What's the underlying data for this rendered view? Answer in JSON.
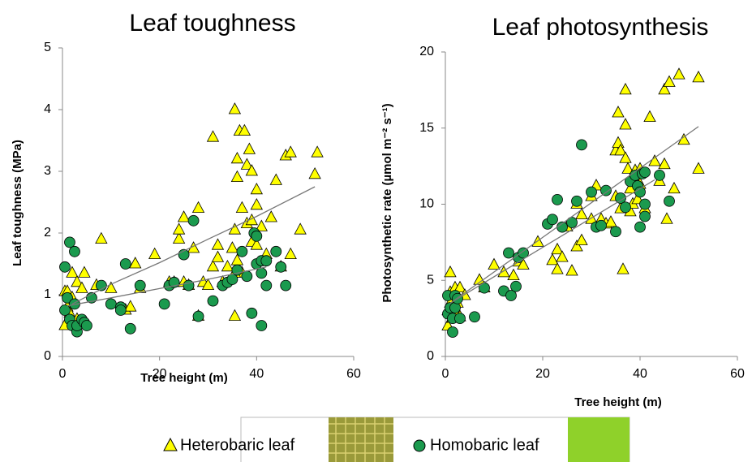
{
  "chart_data": [
    {
      "type": "scatter",
      "title": "Leaf toughness",
      "x_label": "Tree height (m)",
      "y_label": "Leaf toughness (MPa)",
      "xlim": [
        0,
        60
      ],
      "xticks": [
        0,
        20,
        40,
        60
      ],
      "ylim": [
        0,
        5
      ],
      "yticks": [
        0,
        1,
        2,
        3,
        4,
        5
      ],
      "series": [
        {
          "name": "Heterobaric leaf",
          "marker": "triangle",
          "color": "#ffff00",
          "x": [
            0.5,
            0.5,
            1,
            1,
            1.5,
            2,
            2,
            3,
            3,
            4,
            4.5,
            7,
            8,
            10,
            13,
            14,
            15,
            16,
            19,
            22,
            23,
            24,
            24,
            25,
            25,
            26,
            27,
            28,
            28,
            29,
            30,
            31,
            31,
            32,
            32,
            33,
            34,
            35,
            35.5,
            35.5,
            35.5,
            36,
            36,
            36,
            36.5,
            37,
            37,
            37.5,
            38,
            38,
            38.5,
            39,
            39,
            39,
            40,
            40,
            40,
            41,
            42,
            43,
            44,
            45,
            46,
            47,
            47,
            49,
            52,
            52.5,
            35.5,
            33
          ],
          "y": [
            0.5,
            1.05,
            0.8,
            1.05,
            0.7,
            1.35,
            0.95,
            1.2,
            0.6,
            1.1,
            1.35,
            1.15,
            1.9,
            1.1,
            0.75,
            0.8,
            1.5,
            1.1,
            1.65,
            1.2,
            1.2,
            1.9,
            2.05,
            2.25,
            1.2,
            1.15,
            1.75,
            2.4,
            0.65,
            1.2,
            1.15,
            3.55,
            1.45,
            1.6,
            1.8,
            1.2,
            1.45,
            1.75,
            4.0,
            2.05,
            0.65,
            1.55,
            3.2,
            2.9,
            3.65,
            2.4,
            1.35,
            3.65,
            3.1,
            2.15,
            3.35,
            3.0,
            2.2,
            1.85,
            1.8,
            2.7,
            2.45,
            2.1,
            1.65,
            2.25,
            2.85,
            1.45,
            3.25,
            3.3,
            1.65,
            2.05,
            2.95,
            3.3,
            1.35,
            1.2
          ],
          "fit_x": [
            2,
            10,
            20,
            30,
            40,
            52
          ],
          "fit_y": [
            0.85,
            1.17,
            1.52,
            1.9,
            2.27,
            2.75
          ]
        },
        {
          "name": "Homobaric leaf",
          "marker": "circle",
          "color": "#1b9a4e",
          "x": [
            0.5,
            0.5,
            1,
            1.5,
            1.5,
            2,
            2.5,
            2.5,
            3,
            3,
            4,
            4.5,
            5,
            6,
            8,
            10,
            12,
            12,
            13,
            14,
            16,
            21,
            22,
            23,
            25,
            26,
            27,
            28,
            31,
            33,
            34,
            35,
            36,
            37,
            38,
            39,
            39.5,
            40,
            40,
            41,
            41,
            41,
            42,
            44,
            45,
            46,
            42
          ],
          "y": [
            1.45,
            0.75,
            0.95,
            0.6,
            1.85,
            0.5,
            1.7,
            0.85,
            0.4,
            0.5,
            0.6,
            0.55,
            0.5,
            0.95,
            1.15,
            0.85,
            0.8,
            0.75,
            1.5,
            0.45,
            1.15,
            0.85,
            1.15,
            1.2,
            1.65,
            1.15,
            2.2,
            0.65,
            0.9,
            1.15,
            1.2,
            1.25,
            1.4,
            1.7,
            1.3,
            0.7,
            2.0,
            1.5,
            1.95,
            1.55,
            1.35,
            0.5,
            1.15,
            1.7,
            1.45,
            1.15,
            1.55
          ],
          "fit_x": [
            1,
            10,
            20,
            30,
            42
          ],
          "fit_y": [
            0.82,
            0.95,
            1.1,
            1.25,
            1.45
          ]
        }
      ]
    },
    {
      "type": "scatter",
      "title": "Leaf photosynthesis",
      "x_label": "Tree height (m)",
      "y_label": "Photosynthetic rate (µmol m⁻² s⁻¹)",
      "xlim": [
        0,
        60
      ],
      "xticks": [
        0,
        20,
        40,
        60
      ],
      "ylim": [
        0,
        20
      ],
      "yticks": [
        0,
        5,
        10,
        15,
        20
      ],
      "series": [
        {
          "name": "Heterobaric leaf",
          "marker": "triangle",
          "color": "#ffff00",
          "x": [
            0.5,
            0.5,
            1,
            1,
            1,
            1.5,
            2,
            2,
            2.5,
            3,
            3,
            4,
            7,
            8,
            10,
            12,
            14,
            15,
            16,
            19,
            22,
            23,
            23,
            24,
            25,
            26,
            27,
            27,
            28,
            28,
            30,
            30,
            31,
            32,
            33,
            34,
            35,
            35,
            35.5,
            35.5,
            36,
            36,
            36.5,
            37,
            37,
            37,
            37.5,
            38,
            38,
            38.5,
            39,
            39,
            39.5,
            40,
            40,
            41,
            42,
            43,
            44,
            45,
            45,
            45.5,
            46,
            47,
            48,
            49,
            52,
            52
          ],
          "y": [
            2,
            3,
            3.5,
            5.5,
            4.2,
            2.5,
            4.5,
            3,
            3.5,
            2.6,
            4.5,
            4,
            5,
            4.5,
            6.0,
            5.5,
            5.3,
            6.2,
            6,
            7.5,
            6.3,
            5.7,
            7,
            6.5,
            8.5,
            5.6,
            7.2,
            10,
            7.6,
            9.3,
            9,
            10.5,
            11.2,
            9,
            8.7,
            8.8,
            10.5,
            13.5,
            14,
            16,
            13.5,
            9.7,
            5.7,
            15.2,
            17.5,
            13,
            12.3,
            11,
            9.5,
            10,
            11.5,
            12.2,
            10.3,
            12.3,
            11.3,
            9.7,
            15.7,
            12.8,
            11.5,
            12.6,
            17.5,
            9,
            18,
            11,
            18.5,
            14.2,
            12.3,
            18.3
          ],
          "fit_x": [
            1,
            52
          ],
          "fit_y": [
            3.5,
            15.1
          ]
        },
        {
          "name": "Homobaric leaf",
          "marker": "circle",
          "color": "#1b9a4e",
          "x": [
            0.5,
            0.5,
            1,
            1.5,
            1.5,
            2,
            2,
            2.5,
            3,
            6,
            8,
            12,
            13,
            13.5,
            14.5,
            15,
            16,
            21,
            22,
            23,
            24,
            26,
            27,
            28,
            30,
            31,
            32,
            33,
            35,
            36,
            37,
            38,
            39,
            39.5,
            40,
            40,
            40.5,
            41,
            41,
            44,
            46,
            41
          ],
          "y": [
            2.8,
            4,
            3.2,
            1.6,
            2.5,
            4,
            3.2,
            3.8,
            2.5,
            2.6,
            4.5,
            4.3,
            6.8,
            4,
            4.6,
            6.5,
            6.8,
            8.7,
            9,
            10.3,
            8.5,
            8.8,
            10.2,
            13.9,
            10.8,
            8.5,
            8.6,
            10.9,
            8.2,
            10.4,
            9.8,
            11.5,
            11.9,
            11.2,
            10.8,
            8.5,
            12,
            9.2,
            12.1,
            11.9,
            10.2,
            10
          ],
          "fit_x": [
            1,
            43
          ],
          "fit_y": [
            3.5,
            11.6
          ]
        }
      ]
    }
  ]
}
